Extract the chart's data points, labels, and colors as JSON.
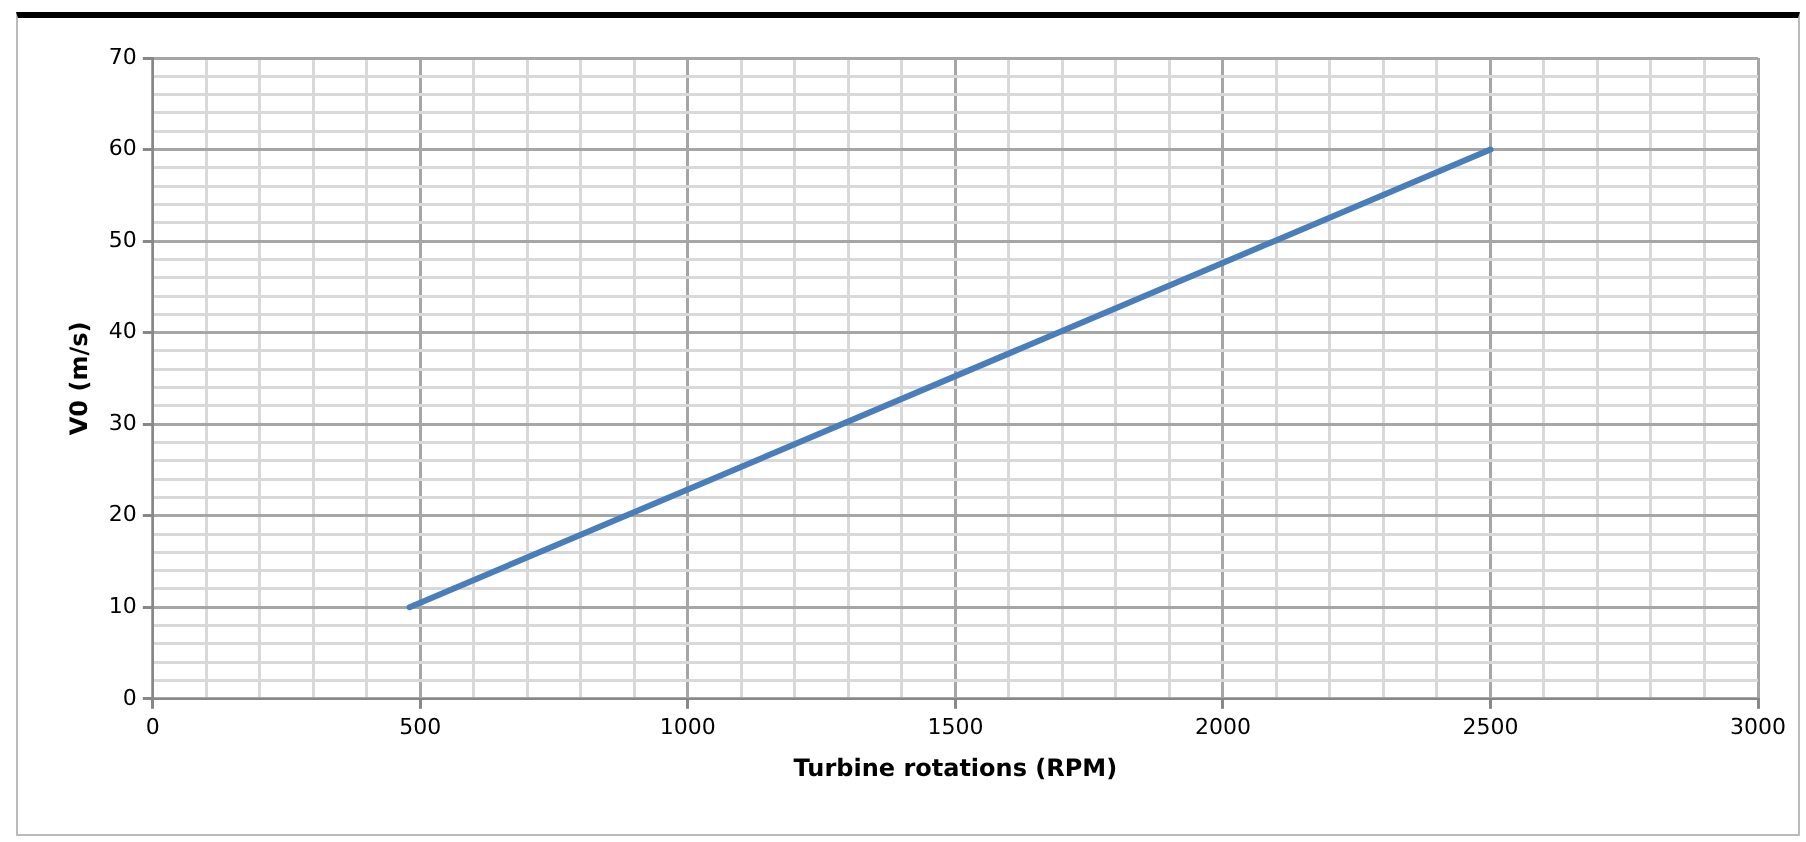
{
  "chart_data": {
    "type": "line",
    "xlabel": "Turbine rotations (RPM)",
    "ylabel": "V0 (m/s)",
    "x": [
      480,
      2500
    ],
    "series": [
      {
        "color": "#4a7ebb",
        "values": [
          10,
          60
        ]
      }
    ],
    "xlim": [
      0,
      3000
    ],
    "ylim": [
      0,
      70
    ],
    "xticks": [
      0,
      {
        "value": 100,
        "label": null
      },
      {
        "value": 200,
        "label": null
      },
      {
        "value": 300,
        "label": null
      },
      {
        "value": 400,
        "label": null
      },
      500,
      {
        "value": 600,
        "label": null
      },
      {
        "value": 700,
        "label": null
      },
      {
        "value": 800,
        "label": null
      },
      {
        "value": 900,
        "label": null
      },
      1000,
      {
        "value": 1100,
        "label": null
      },
      {
        "value": 1200,
        "label": null
      },
      {
        "value": 1300,
        "label": null
      },
      {
        "value": 1400,
        "label": null
      },
      1500,
      {
        "value": 1600,
        "label": null
      },
      {
        "value": 1700,
        "label": null
      },
      {
        "value": 1800,
        "label": null
      },
      {
        "value": 1900,
        "label": null
      },
      2000,
      {
        "value": 2100,
        "label": null
      },
      {
        "value": 2200,
        "label": null
      },
      {
        "value": 2300,
        "label": null
      },
      {
        "value": 2400,
        "label": null
      },
      2500,
      {
        "value": 2600,
        "label": null
      },
      {
        "value": 2700,
        "label": null
      },
      {
        "value": 2800,
        "label": null
      },
      {
        "value": 2900,
        "label": null
      },
      3000
    ],
    "yticks": [
      0,
      {
        "value": 2,
        "label": null
      },
      {
        "value": 4,
        "label": null
      },
      {
        "value": 6,
        "label": null
      },
      {
        "value": 8,
        "label": null
      },
      10,
      {
        "value": 12,
        "label": null
      },
      {
        "value": 14,
        "label": null
      },
      {
        "value": 16,
        "label": null
      },
      {
        "value": 18,
        "label": null
      },
      20,
      {
        "value": 22,
        "label": null
      },
      {
        "value": 24,
        "label": null
      },
      {
        "value": 26,
        "label": null
      },
      {
        "value": 28,
        "label": null
      },
      30,
      {
        "value": 32,
        "label": null
      },
      {
        "value": 34,
        "label": null
      },
      {
        "value": 36,
        "label": null
      },
      {
        "value": 38,
        "label": null
      },
      40,
      {
        "value": 42,
        "label": null
      },
      {
        "value": 44,
        "label": null
      },
      {
        "value": 46,
        "label": null
      },
      {
        "value": 48,
        "label": null
      },
      50,
      {
        "value": 52,
        "label": null
      },
      {
        "value": 54,
        "label": null
      },
      {
        "value": 56,
        "label": null
      },
      {
        "value": 58,
        "label": null
      },
      60,
      {
        "value": 62,
        "label": null
      },
      {
        "value": 64,
        "label": null
      },
      {
        "value": 66,
        "label": null
      },
      {
        "value": 68,
        "label": null
      },
      70
    ],
    "grid": true,
    "legend": false,
    "marker": "none",
    "line_style": "solid"
  }
}
